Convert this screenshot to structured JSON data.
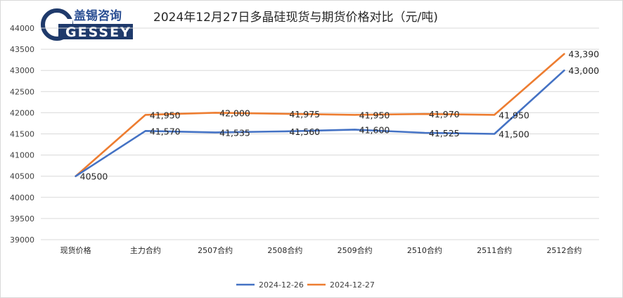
{
  "logo": {
    "cn": "盖锡咨询",
    "en": "GESSEY",
    "colors": {
      "dark": "#1f3a6b",
      "blue": "#2b4f93"
    }
  },
  "chart_data": {
    "type": "line",
    "title": "2024年12月27日多晶硅现货与期货价格对比（元/吨)",
    "categories": [
      "现货价格",
      "主力合约",
      "2507合约",
      "2508合约",
      "2509合约",
      "2510合约",
      "2511合约",
      "2512合约"
    ],
    "ylim": [
      39000,
      44000
    ],
    "yticks": [
      "39000",
      "39500",
      "40000",
      "40500",
      "41000",
      "41500",
      "42000",
      "42500",
      "43000",
      "43500",
      "44000"
    ],
    "grid": true,
    "legend_position": "bottom",
    "series": [
      {
        "name": "2024-12-26",
        "color": "#4472c4",
        "values": [
          40500,
          41570,
          41535,
          41560,
          41600,
          41525,
          41500,
          43000
        ],
        "labels": [
          "40500",
          "41,570",
          "41,535",
          "41,560",
          "41,600",
          "41,525",
          "41,500",
          "43,000"
        ]
      },
      {
        "name": "2024-12-27",
        "color": "#ed7d31",
        "values": [
          40500,
          41950,
          42000,
          41975,
          41950,
          41970,
          41950,
          43390
        ],
        "labels": [
          "",
          "41,950",
          "42,000",
          "41,975",
          "41,950",
          "41,970",
          "41,950",
          "43,390"
        ]
      }
    ]
  }
}
